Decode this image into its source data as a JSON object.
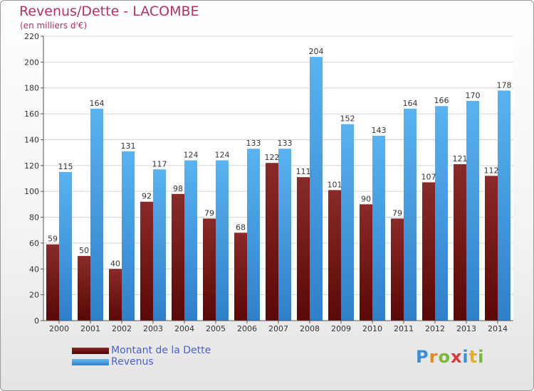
{
  "header": {
    "title": "Revenus/Dette - LACOMBE",
    "subtitle": "(en milliers d'€)"
  },
  "legend": {
    "items": [
      {
        "label": "Montant de la Dette",
        "color": "#6e1a1a"
      },
      {
        "label": "Revenus",
        "color": "#4da6e8"
      }
    ]
  },
  "logo": {
    "text": "Proxiti"
  },
  "chart_data": {
    "type": "bar",
    "title": "Revenus/Dette - LACOMBE",
    "subtitle": "(en milliers d'€)",
    "categories": [
      "2000",
      "2001",
      "2002",
      "2003",
      "2004",
      "2005",
      "2006",
      "2007",
      "2008",
      "2009",
      "2010",
      "2011",
      "2012",
      "2013",
      "2014"
    ],
    "series": [
      {
        "name": "Montant de la Dette",
        "color": "#7a2020",
        "values": [
          59,
          50,
          40,
          92,
          98,
          79,
          68,
          122,
          111,
          101,
          90,
          79,
          107,
          121,
          112
        ]
      },
      {
        "name": "Revenus",
        "color": "#4ea8ea",
        "values": [
          115,
          164,
          131,
          117,
          124,
          124,
          133,
          133,
          204,
          152,
          143,
          164,
          166,
          170,
          178
        ]
      }
    ],
    "ylim": [
      0,
      220
    ],
    "yticks": [
      0,
      20,
      40,
      60,
      80,
      100,
      120,
      140,
      160,
      180,
      200,
      220
    ],
    "grid": true,
    "legend_position": "bottom-left"
  }
}
